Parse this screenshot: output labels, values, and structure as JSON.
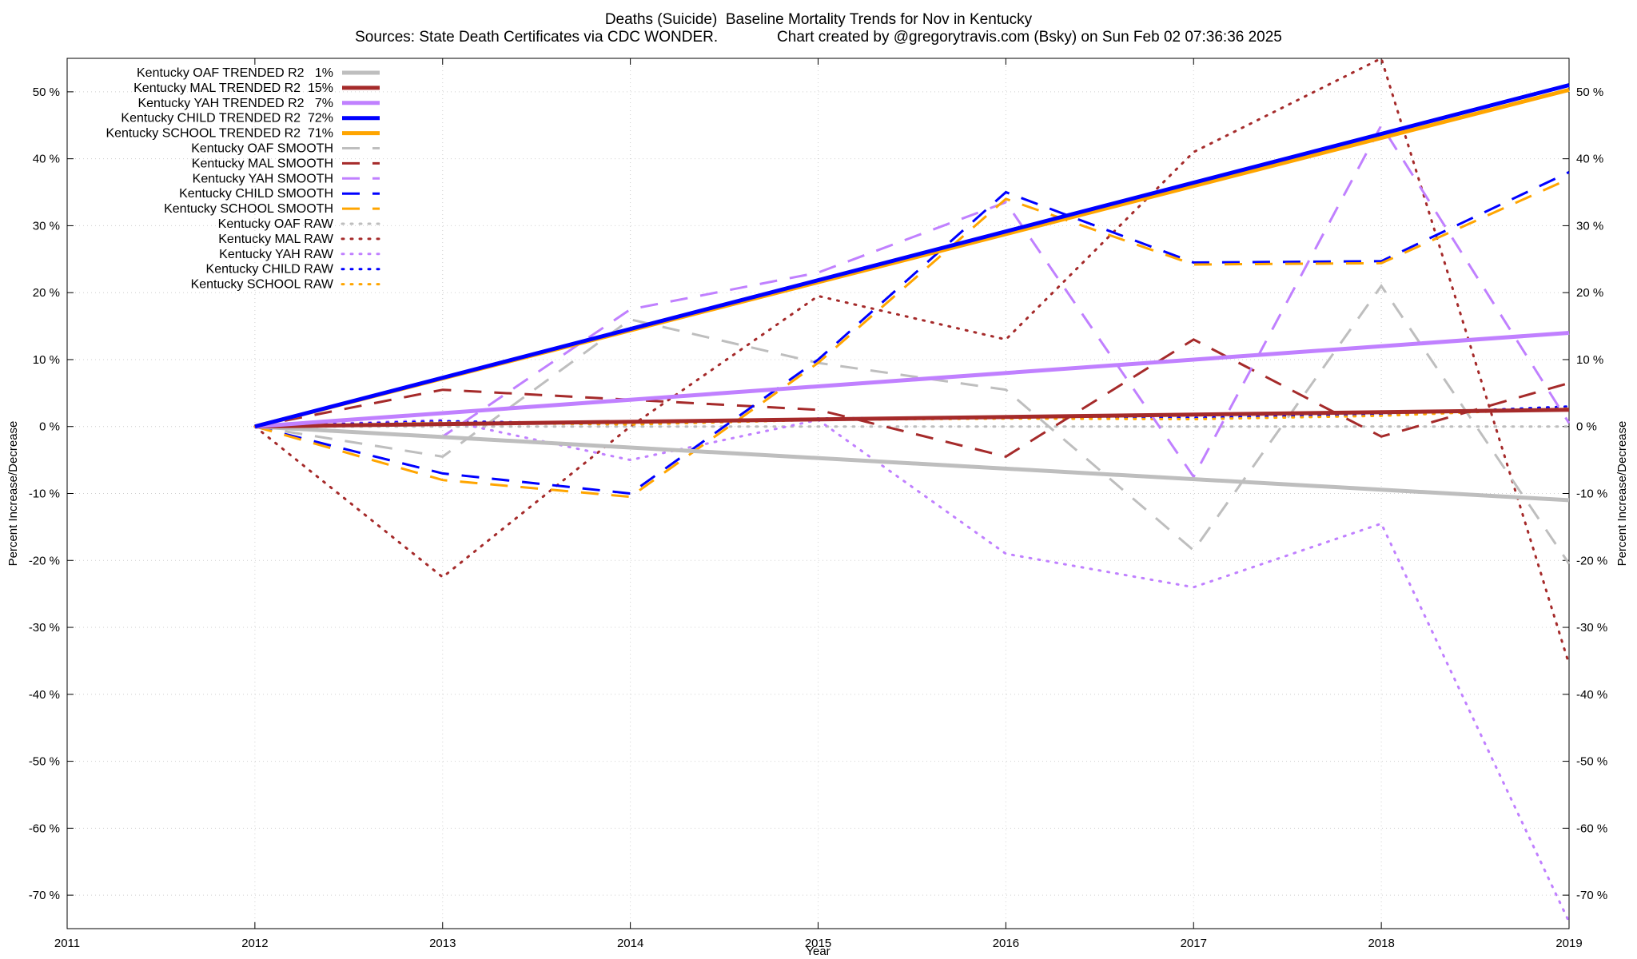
{
  "chart_data": {
    "type": "line",
    "title": "Deaths (Suicide)  Baseline Mortality Trends for Nov in Kentucky",
    "subtitle": "Sources: State Death Certificates via CDC WONDER.              Chart created by @gregorytravis.com (Bsky) on Sun Feb 02 07:36:36 2025",
    "xlabel": "Year",
    "ylabel": "Percent Increase/Decrease",
    "ylabel_right": "Percent Increase/Decrease",
    "xlim": [
      2011,
      2019
    ],
    "ylim": [
      -75,
      55
    ],
    "x_ticks": [
      2011,
      2012,
      2013,
      2014,
      2015,
      2016,
      2017,
      2018,
      2019
    ],
    "y_ticks": [
      50,
      40,
      30,
      20,
      10,
      0,
      -10,
      -20,
      -30,
      -40,
      -50,
      -60,
      -70
    ],
    "y_tick_suffix": " %",
    "grid": true,
    "legend_position": "top-left",
    "series": [
      {
        "name": "Kentucky OAF TRENDED R2   1%",
        "style": "solid",
        "color": "#bebebe",
        "x": [
          2012,
          2019
        ],
        "y": [
          0,
          -11
        ]
      },
      {
        "name": "Kentucky MAL TRENDED R2  15%",
        "style": "solid",
        "color": "#a52a2a",
        "x": [
          2012,
          2019
        ],
        "y": [
          0,
          2.5
        ]
      },
      {
        "name": "Kentucky YAH TRENDED R2   7%",
        "style": "solid",
        "color": "#c080ff",
        "x": [
          2012,
          2014,
          2019
        ],
        "y": [
          0,
          4,
          14
        ]
      },
      {
        "name": "Kentucky CHILD TRENDED R2  72%",
        "style": "solid",
        "color": "#0000ff",
        "x": [
          2012,
          2019
        ],
        "y": [
          0,
          51
        ]
      },
      {
        "name": "Kentucky SCHOOL TRENDED R2  71%",
        "style": "solid",
        "color": "#ffa500",
        "x": [
          2012,
          2019
        ],
        "y": [
          0,
          50.3
        ]
      },
      {
        "name": "Kentucky OAF SMOOTH",
        "style": "dashed",
        "color": "#bebebe",
        "x": [
          2012,
          2013,
          2014,
          2015,
          2016,
          2017,
          2018,
          2019
        ],
        "y": [
          0,
          -4.5,
          16,
          9.5,
          5.5,
          -18.5,
          21,
          -20.5
        ]
      },
      {
        "name": "Kentucky MAL SMOOTH",
        "style": "dashed",
        "color": "#a52a2a",
        "x": [
          2012,
          2013,
          2014,
          2015,
          2016,
          2017,
          2018,
          2019
        ],
        "y": [
          0,
          5.5,
          4,
          2.5,
          -4.5,
          13,
          -1.5,
          6.5
        ]
      },
      {
        "name": "Kentucky YAH SMOOTH",
        "style": "dashed",
        "color": "#c080ff",
        "x": [
          2012,
          2013,
          2014,
          2015,
          2016,
          2017,
          2018,
          2019
        ],
        "y": [
          0,
          -1.5,
          17.5,
          23,
          33.5,
          -7.5,
          45,
          0.5
        ]
      },
      {
        "name": "Kentucky CHILD SMOOTH",
        "style": "dashed",
        "color": "#0000ff",
        "x": [
          2012,
          2013,
          2014,
          2015,
          2016,
          2017,
          2018,
          2019
        ],
        "y": [
          0,
          -7,
          -10,
          10,
          35,
          24.5,
          24.7,
          38
        ]
      },
      {
        "name": "Kentucky SCHOOL SMOOTH",
        "style": "dashed",
        "color": "#ffa500",
        "x": [
          2012,
          2013,
          2014,
          2015,
          2016,
          2017,
          2018,
          2019
        ],
        "y": [
          0,
          -8,
          -10.5,
          9.5,
          34,
          24.2,
          24.4,
          37
        ]
      },
      {
        "name": "Kentucky OAF RAW",
        "style": "dotted",
        "color": "#bebebe",
        "x": [
          2012,
          2019
        ],
        "y": [
          0,
          0
        ]
      },
      {
        "name": "Kentucky MAL RAW",
        "style": "dotted",
        "color": "#a52a2a",
        "x": [
          2012,
          2013,
          2014,
          2015,
          2016,
          2017,
          2018,
          2019
        ],
        "y": [
          0,
          -22.5,
          0,
          19.5,
          13,
          41,
          55,
          -35.5
        ]
      },
      {
        "name": "Kentucky YAH RAW",
        "style": "dotted",
        "color": "#c080ff",
        "x": [
          2012,
          2013,
          2014,
          2015,
          2016,
          2017,
          2018,
          2019
        ],
        "y": [
          0,
          1,
          -5,
          1,
          -19,
          -24,
          -14.5,
          -74
        ]
      },
      {
        "name": "Kentucky CHILD RAW",
        "style": "dotted",
        "color": "#0000ff",
        "x": [
          2012,
          2013,
          2014,
          2015,
          2016,
          2017,
          2018,
          2019
        ],
        "y": [
          0,
          0.8,
          0.4,
          1.2,
          1.4,
          1.3,
          1.8,
          3
        ]
      },
      {
        "name": "Kentucky SCHOOL RAW",
        "style": "dotted",
        "color": "#ffa500",
        "x": [
          2012,
          2013,
          2014,
          2015,
          2016,
          2017,
          2018,
          2019
        ],
        "y": [
          0,
          0.6,
          0.3,
          1,
          1.2,
          1.1,
          1.6,
          2.7
        ]
      }
    ]
  }
}
